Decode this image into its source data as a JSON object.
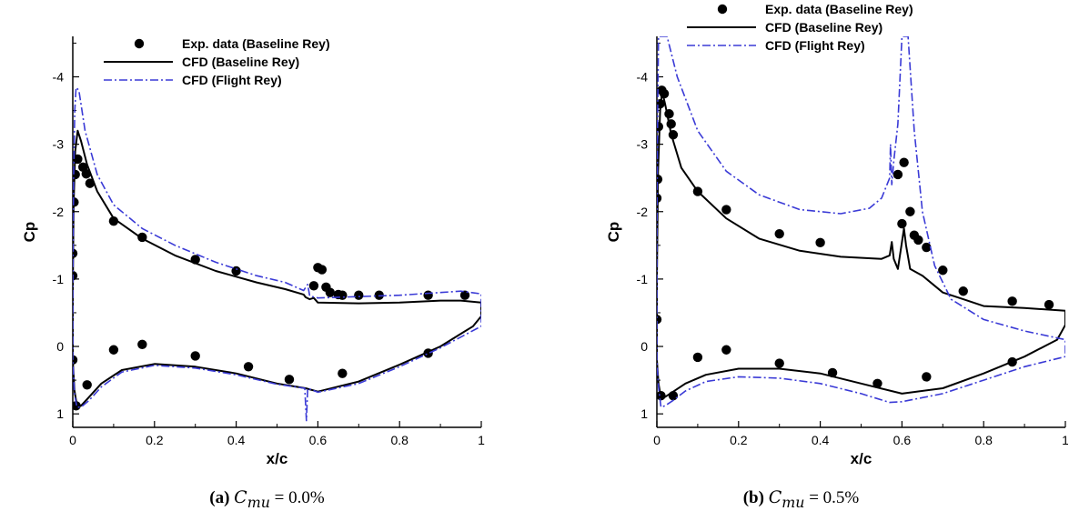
{
  "figure": {
    "panels": [
      {
        "caption_tag": "(a)",
        "caption_symbol": "C",
        "caption_sub": "mu",
        "caption_value": "= 0.0%"
      },
      {
        "caption_tag": "(b)",
        "caption_symbol": "C",
        "caption_sub": "mu",
        "caption_value": "= 0.5%"
      }
    ]
  },
  "colors": {
    "exp": "#000000",
    "cfd_baseline": "#000000",
    "cfd_flight": "#3a3ad6"
  },
  "chart_data": [
    {
      "type": "line",
      "xlabel": "x/c",
      "ylabel": "Cp",
      "xlim": [
        0,
        1
      ],
      "ylim": [
        1.2,
        -4.6
      ],
      "y_inverted": true,
      "xticks": [
        "0",
        "0.2",
        "0.4",
        "0.6",
        "0.8",
        "1"
      ],
      "yticks": [
        "-4",
        "-3",
        "-2",
        "-1",
        "0",
        "1"
      ],
      "legend_position": "top-center",
      "series": [
        {
          "name": "Exp. data (Baseline Rey)",
          "style": "markers",
          "points": [
            [
              0.0,
              -1.05
            ],
            [
              0.0,
              -1.38
            ],
            [
              0.003,
              -2.14
            ],
            [
              0.006,
              -2.55
            ],
            [
              0.012,
              -2.78
            ],
            [
              0.025,
              -2.66
            ],
            [
              0.033,
              -2.56
            ],
            [
              0.042,
              -2.42
            ],
            [
              0.1,
              -1.86
            ],
            [
              0.17,
              -1.62
            ],
            [
              0.3,
              -1.29
            ],
            [
              0.4,
              -1.12
            ],
            [
              0.59,
              -0.9
            ],
            [
              0.6,
              -1.17
            ],
            [
              0.61,
              -1.14
            ],
            [
              0.62,
              -0.88
            ],
            [
              0.63,
              -0.8
            ],
            [
              0.65,
              -0.77
            ],
            [
              0.66,
              -0.76
            ],
            [
              0.7,
              -0.76
            ],
            [
              0.75,
              -0.76
            ],
            [
              0.87,
              -0.76
            ],
            [
              0.96,
              -0.76
            ],
            [
              0.0,
              0.2
            ],
            [
              0.008,
              0.88
            ],
            [
              0.035,
              0.57
            ],
            [
              0.1,
              0.05
            ],
            [
              0.17,
              -0.03
            ],
            [
              0.3,
              0.14
            ],
            [
              0.43,
              0.3
            ],
            [
              0.53,
              0.49
            ],
            [
              0.66,
              0.4
            ],
            [
              0.87,
              0.1
            ]
          ]
        },
        {
          "name": "CFD (Baseline Rey)",
          "style": "solid",
          "points": [
            [
              0.0,
              0.2
            ],
            [
              0.0,
              -0.8
            ],
            [
              0.002,
              -2.1
            ],
            [
              0.006,
              -2.9
            ],
            [
              0.012,
              -3.2
            ],
            [
              0.02,
              -3.05
            ],
            [
              0.035,
              -2.7
            ],
            [
              0.06,
              -2.3
            ],
            [
              0.1,
              -1.9
            ],
            [
              0.17,
              -1.6
            ],
            [
              0.25,
              -1.35
            ],
            [
              0.35,
              -1.12
            ],
            [
              0.45,
              -0.95
            ],
            [
              0.52,
              -0.85
            ],
            [
              0.565,
              -0.77
            ],
            [
              0.57,
              -0.73
            ],
            [
              0.58,
              -0.7
            ],
            [
              0.59,
              -0.72
            ],
            [
              0.6,
              -0.65
            ],
            [
              0.7,
              -0.64
            ],
            [
              0.8,
              -0.65
            ],
            [
              0.9,
              -0.68
            ],
            [
              0.95,
              -0.68
            ],
            [
              1.0,
              -0.65
            ],
            [
              1.0,
              -0.45
            ],
            [
              0.98,
              -0.3
            ],
            [
              0.9,
              0.0
            ],
            [
              0.8,
              0.27
            ],
            [
              0.7,
              0.52
            ],
            [
              0.6,
              0.67
            ],
            [
              0.57,
              0.62
            ],
            [
              0.5,
              0.55
            ],
            [
              0.4,
              0.4
            ],
            [
              0.3,
              0.3
            ],
            [
              0.2,
              0.26
            ],
            [
              0.12,
              0.35
            ],
            [
              0.07,
              0.55
            ],
            [
              0.04,
              0.75
            ],
            [
              0.02,
              0.88
            ],
            [
              0.01,
              0.87
            ],
            [
              0.004,
              0.65
            ],
            [
              0.0,
              0.2
            ]
          ]
        },
        {
          "name": "CFD (Flight Rey)",
          "style": "dashdot",
          "points": [
            [
              0.0,
              0.2
            ],
            [
              0.0,
              -0.8
            ],
            [
              0.002,
              -2.5
            ],
            [
              0.005,
              -3.5
            ],
            [
              0.008,
              -3.84
            ],
            [
              0.015,
              -3.8
            ],
            [
              0.03,
              -3.2
            ],
            [
              0.06,
              -2.55
            ],
            [
              0.1,
              -2.1
            ],
            [
              0.17,
              -1.75
            ],
            [
              0.25,
              -1.5
            ],
            [
              0.35,
              -1.25
            ],
            [
              0.45,
              -1.05
            ],
            [
              0.52,
              -0.95
            ],
            [
              0.565,
              -0.83
            ],
            [
              0.575,
              -0.92
            ],
            [
              0.58,
              -0.75
            ],
            [
              0.6,
              -0.72
            ],
            [
              0.7,
              -0.74
            ],
            [
              0.8,
              -0.76
            ],
            [
              0.9,
              -0.8
            ],
            [
              0.95,
              -0.82
            ],
            [
              1.0,
              -0.78
            ],
            [
              1.0,
              -0.3
            ],
            [
              0.9,
              0.02
            ],
            [
              0.8,
              0.3
            ],
            [
              0.7,
              0.55
            ],
            [
              0.6,
              0.68
            ],
            [
              0.575,
              0.62
            ],
            [
              0.572,
              1.1
            ],
            [
              0.568,
              0.62
            ],
            [
              0.5,
              0.56
            ],
            [
              0.4,
              0.42
            ],
            [
              0.3,
              0.32
            ],
            [
              0.2,
              0.28
            ],
            [
              0.12,
              0.38
            ],
            [
              0.07,
              0.6
            ],
            [
              0.04,
              0.8
            ],
            [
              0.02,
              0.9
            ],
            [
              0.01,
              0.9
            ],
            [
              0.004,
              0.7
            ],
            [
              0.0,
              0.2
            ]
          ]
        }
      ]
    },
    {
      "type": "line",
      "xlabel": "x/c",
      "ylabel": "Cp",
      "xlim": [
        0,
        1
      ],
      "ylim": [
        1.2,
        -4.6
      ],
      "y_inverted": true,
      "xticks": [
        "0",
        "0.2",
        "0.4",
        "0.6",
        "0.8",
        "1"
      ],
      "yticks": [
        "-4",
        "-3",
        "-2",
        "-1",
        "0",
        "1"
      ],
      "legend_position": "top-center",
      "series": [
        {
          "name": "Exp. data (Baseline Rey)",
          "style": "markers",
          "points": [
            [
              0.0,
              -0.4
            ],
            [
              0.0,
              -2.2
            ],
            [
              0.002,
              -2.48
            ],
            [
              0.004,
              -3.26
            ],
            [
              0.008,
              -3.6
            ],
            [
              0.012,
              -3.8
            ],
            [
              0.018,
              -3.75
            ],
            [
              0.03,
              -3.45
            ],
            [
              0.035,
              -3.3
            ],
            [
              0.04,
              -3.14
            ],
            [
              0.1,
              -2.3
            ],
            [
              0.17,
              -2.03
            ],
            [
              0.3,
              -1.67
            ],
            [
              0.4,
              -1.54
            ],
            [
              0.59,
              -2.55
            ],
            [
              0.6,
              -1.82
            ],
            [
              0.605,
              -2.73
            ],
            [
              0.62,
              -2.0
            ],
            [
              0.63,
              -1.65
            ],
            [
              0.64,
              -1.58
            ],
            [
              0.66,
              -1.47
            ],
            [
              0.7,
              -1.13
            ],
            [
              0.75,
              -0.82
            ],
            [
              0.87,
              -0.67
            ],
            [
              0.96,
              -0.62
            ],
            [
              0.01,
              0.73
            ],
            [
              0.04,
              0.73
            ],
            [
              0.1,
              0.16
            ],
            [
              0.17,
              0.05
            ],
            [
              0.3,
              0.25
            ],
            [
              0.43,
              0.39
            ],
            [
              0.54,
              0.55
            ],
            [
              0.66,
              0.45
            ],
            [
              0.87,
              0.23
            ]
          ]
        },
        {
          "name": "CFD (Baseline Rey)",
          "style": "solid",
          "points": [
            [
              0.0,
              0.2
            ],
            [
              0.0,
              -1.0
            ],
            [
              0.003,
              -2.6
            ],
            [
              0.008,
              -3.5
            ],
            [
              0.013,
              -3.78
            ],
            [
              0.02,
              -3.6
            ],
            [
              0.035,
              -3.15
            ],
            [
              0.06,
              -2.65
            ],
            [
              0.1,
              -2.3
            ],
            [
              0.17,
              -1.9
            ],
            [
              0.25,
              -1.6
            ],
            [
              0.35,
              -1.42
            ],
            [
              0.45,
              -1.33
            ],
            [
              0.55,
              -1.3
            ],
            [
              0.57,
              -1.35
            ],
            [
              0.575,
              -1.55
            ],
            [
              0.58,
              -1.3
            ],
            [
              0.59,
              -1.15
            ],
            [
              0.6,
              -1.55
            ],
            [
              0.605,
              -1.75
            ],
            [
              0.61,
              -1.5
            ],
            [
              0.62,
              -1.15
            ],
            [
              0.65,
              -1.05
            ],
            [
              0.7,
              -0.8
            ],
            [
              0.75,
              -0.7
            ],
            [
              0.8,
              -0.6
            ],
            [
              0.9,
              -0.57
            ],
            [
              1.0,
              -0.53
            ],
            [
              1.0,
              -0.32
            ],
            [
              0.98,
              -0.1
            ],
            [
              0.9,
              0.15
            ],
            [
              0.8,
              0.4
            ],
            [
              0.7,
              0.62
            ],
            [
              0.6,
              0.7
            ],
            [
              0.5,
              0.55
            ],
            [
              0.4,
              0.4
            ],
            [
              0.3,
              0.33
            ],
            [
              0.2,
              0.33
            ],
            [
              0.12,
              0.42
            ],
            [
              0.07,
              0.55
            ],
            [
              0.04,
              0.67
            ],
            [
              0.02,
              0.75
            ],
            [
              0.01,
              0.76
            ],
            [
              0.004,
              0.55
            ],
            [
              0.0,
              0.2
            ]
          ]
        },
        {
          "name": "CFD (Flight Rey)",
          "style": "dashdot",
          "points": [
            [
              0.0,
              0.2
            ],
            [
              0.0,
              -1.5
            ],
            [
              0.002,
              -3.5
            ],
            [
              0.004,
              -4.6
            ],
            [
              0.012,
              -4.6
            ],
            [
              0.025,
              -4.6
            ],
            [
              0.05,
              -4.0
            ],
            [
              0.1,
              -3.2
            ],
            [
              0.17,
              -2.6
            ],
            [
              0.25,
              -2.25
            ],
            [
              0.35,
              -2.03
            ],
            [
              0.45,
              -1.97
            ],
            [
              0.52,
              -2.05
            ],
            [
              0.55,
              -2.2
            ],
            [
              0.57,
              -2.5
            ],
            [
              0.572,
              -3.0
            ],
            [
              0.575,
              -2.4
            ],
            [
              0.58,
              -2.75
            ],
            [
              0.59,
              -3.3
            ],
            [
              0.6,
              -4.6
            ],
            [
              0.615,
              -4.6
            ],
            [
              0.63,
              -3.2
            ],
            [
              0.65,
              -2.0
            ],
            [
              0.68,
              -1.2
            ],
            [
              0.72,
              -0.7
            ],
            [
              0.8,
              -0.4
            ],
            [
              0.9,
              -0.23
            ],
            [
              1.0,
              -0.1
            ],
            [
              1.0,
              0.15
            ],
            [
              0.9,
              0.3
            ],
            [
              0.8,
              0.5
            ],
            [
              0.7,
              0.7
            ],
            [
              0.6,
              0.82
            ],
            [
              0.57,
              0.83
            ],
            [
              0.5,
              0.7
            ],
            [
              0.4,
              0.55
            ],
            [
              0.3,
              0.47
            ],
            [
              0.2,
              0.45
            ],
            [
              0.12,
              0.52
            ],
            [
              0.07,
              0.66
            ],
            [
              0.04,
              0.8
            ],
            [
              0.02,
              0.88
            ],
            [
              0.01,
              0.9
            ],
            [
              0.004,
              0.6
            ],
            [
              0.0,
              0.2
            ]
          ]
        }
      ]
    }
  ]
}
